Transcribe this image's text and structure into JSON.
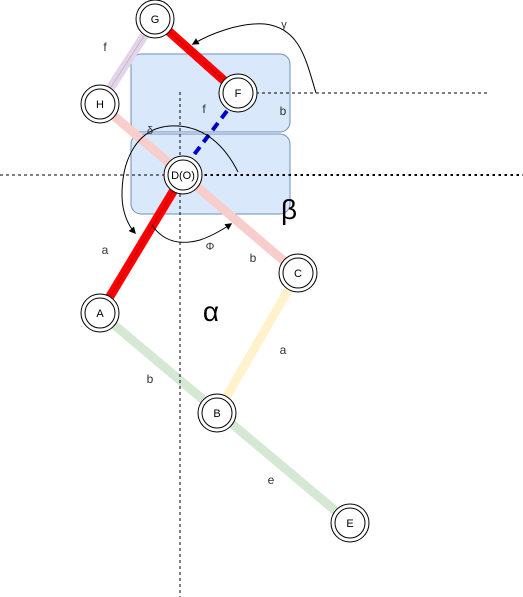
{
  "colors": {
    "red": "#ff0000",
    "pink": "#f8cecc",
    "purple": "#e1d5e7",
    "yellow": "#fff2cc",
    "green": "#d5e8d4",
    "region": "#dae8fc",
    "region_border": "#6c8ebf",
    "dash_blue": "#0000cc"
  },
  "nodes": {
    "G": "G",
    "H": "H",
    "F": "F",
    "D": "D(O)",
    "C": "C",
    "A": "A",
    "B": "B",
    "E": "E"
  },
  "labels": {
    "f_gh": "f",
    "gamma": "γ",
    "f_mid": "f",
    "b_right": "b",
    "delta": "δ",
    "beta": "β",
    "a_left": "a",
    "phi": "Φ",
    "b_dc": "b",
    "alpha": "α",
    "a_cb": "a",
    "b_ab": "b",
    "e_be": "e"
  }
}
